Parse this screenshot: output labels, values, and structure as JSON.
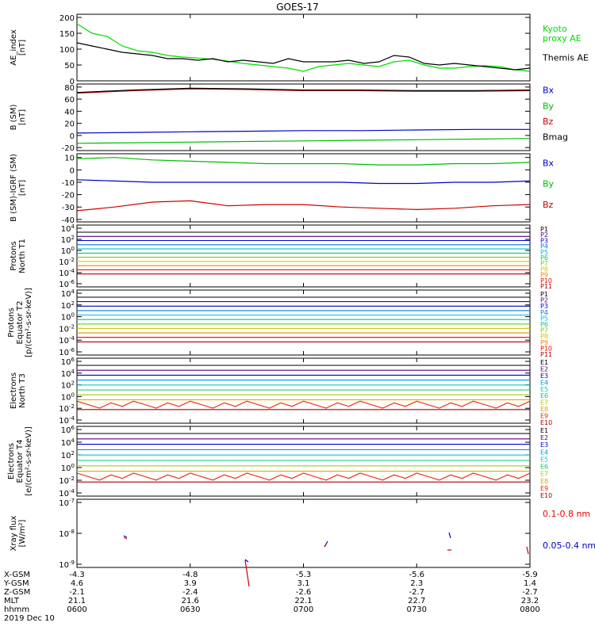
{
  "title": "GOES-17",
  "chart_data": [
    {
      "type": "line",
      "ylabel": "AE_index\n[nT]",
      "yticks": [
        "200",
        "150",
        "100",
        "50",
        "0"
      ],
      "ylim": [
        0,
        210
      ],
      "x": [
        600,
        604,
        608,
        612,
        616,
        620,
        624,
        628,
        632,
        636,
        640,
        644,
        648,
        652,
        656,
        700,
        704,
        708,
        712,
        716,
        720,
        724,
        728,
        732,
        736,
        740,
        744,
        748,
        752,
        756,
        800
      ],
      "series": [
        {
          "name": "Kyoto\nproxy AE",
          "color": "#00dd00",
          "values": [
            180,
            150,
            140,
            110,
            95,
            90,
            80,
            75,
            72,
            68,
            62,
            55,
            50,
            45,
            40,
            30,
            45,
            50,
            55,
            50,
            45,
            60,
            65,
            50,
            40,
            40,
            45,
            48,
            45,
            35,
            30
          ]
        },
        {
          "name": "Themis AE",
          "color": "#000000",
          "values": [
            120,
            110,
            100,
            90,
            85,
            80,
            70,
            70,
            65,
            70,
            60,
            65,
            60,
            55,
            70,
            60,
            60,
            60,
            65,
            55,
            60,
            80,
            75,
            55,
            50,
            55,
            50,
            45,
            40,
            35,
            40
          ]
        }
      ]
    },
    {
      "type": "line",
      "ylabel": "B (SM)\n[nT]",
      "yticks": [
        "80",
        "60",
        "40",
        "20",
        "0",
        "-20"
      ],
      "ylim": [
        -25,
        85
      ],
      "x": [
        600,
        615,
        630,
        645,
        700,
        715,
        730,
        745,
        800
      ],
      "series": [
        {
          "name": "Bx",
          "color": "#0000cc",
          "values": [
            4,
            5,
            6,
            7,
            8,
            8,
            9,
            10,
            10
          ]
        },
        {
          "name": "By",
          "color": "#00bb00",
          "values": [
            -13,
            -12,
            -11,
            -10,
            -9,
            -8,
            -7,
            -6,
            -5
          ]
        },
        {
          "name": "Bz",
          "color": "#cc0000",
          "values": [
            70,
            74,
            77,
            76,
            74,
            74,
            73,
            73,
            74
          ]
        },
        {
          "name": "Bmag",
          "color": "#000000",
          "values": [
            71,
            75,
            78,
            77,
            75,
            75,
            74,
            74,
            75
          ]
        }
      ]
    },
    {
      "type": "line",
      "ylabel": "B (SM)-IGRF (SM)\n[nT]",
      "yticks": [
        "10",
        "0",
        "-10",
        "-20",
        "-30",
        "-40"
      ],
      "ylim": [
        -42,
        13
      ],
      "x": [
        600,
        610,
        620,
        630,
        640,
        650,
        700,
        710,
        720,
        730,
        740,
        750,
        800
      ],
      "series": [
        {
          "name": "Bx",
          "color": "#0000cc",
          "values": [
            -8,
            -9,
            -10,
            -10,
            -10,
            -10,
            -10,
            -10,
            -11,
            -11,
            -10,
            -10,
            -9
          ]
        },
        {
          "name": "By",
          "color": "#00bb00",
          "values": [
            9,
            10,
            8,
            7,
            6,
            5,
            5,
            5,
            4,
            4,
            5,
            5,
            6
          ]
        },
        {
          "name": "Bz",
          "color": "#cc0000",
          "values": [
            -33,
            -30,
            -26,
            -25,
            -29,
            -28,
            -28,
            -30,
            -31,
            -32,
            -31,
            -29,
            -28
          ]
        }
      ]
    },
    {
      "type": "line",
      "ylabel": "Protons\nNorth T1",
      "yticks": [
        "10^4",
        "10^2",
        "10^0",
        "10^-2",
        "10^-4",
        "10^-6"
      ],
      "yscale": "log",
      "channels": [
        "P1",
        "P2",
        "P3",
        "P4",
        "P5",
        "P6",
        "P7",
        "P8",
        "P9",
        "P10",
        "P11"
      ],
      "channel_colors": [
        "#000000",
        "#550077",
        "#0000cc",
        "#0077dd",
        "#00bbdd",
        "#00cc77",
        "#77cc00",
        "#cccc00",
        "#ee8800",
        "#ee0000",
        "#aa0000"
      ]
    },
    {
      "type": "line",
      "ylabel": "Protons\nEquator T2\n[p/(cm²-s-sr-keV)]",
      "yticks": [
        "10^4",
        "10^2",
        "10^0",
        "10^-2",
        "10^-4",
        "10^-6"
      ],
      "yscale": "log",
      "channels": [
        "P1",
        "P2",
        "P3",
        "P4",
        "P5",
        "P6",
        "P7",
        "P8",
        "P9",
        "P10",
        "P11"
      ],
      "channel_colors": [
        "#000000",
        "#550077",
        "#0000cc",
        "#0077dd",
        "#00bbdd",
        "#00cc77",
        "#77cc00",
        "#cccc00",
        "#ee8800",
        "#ee0000",
        "#aa0000"
      ]
    },
    {
      "type": "line",
      "ylabel": "Electrons\nNorth T3",
      "yticks": [
        "10^6",
        "10^4",
        "10^2",
        "10^0",
        "10^-2",
        "10^-4"
      ],
      "yscale": "log",
      "channels": [
        "E1",
        "E2",
        "E3",
        "E4",
        "E5",
        "E6",
        "E7",
        "E8",
        "E9",
        "E10"
      ],
      "channel_colors": [
        "#000000",
        "#550077",
        "#0000cc",
        "#0099dd",
        "#00cccc",
        "#00cc66",
        "#aacc00",
        "#ddaa00",
        "#ee2200",
        "#aa0000"
      ]
    },
    {
      "type": "line",
      "ylabel": "Electrons\nEquator T4\n[e/(cm²-s-sr-keV)]",
      "yticks": [
        "10^6",
        "10^4",
        "10^2",
        "10^0",
        "10^-2",
        "10^-4"
      ],
      "yscale": "log",
      "channels": [
        "E1",
        "E2",
        "E3",
        "E4",
        "E5",
        "E6",
        "E7",
        "E8",
        "E9",
        "E10"
      ],
      "channel_colors": [
        "#000000",
        "#550077",
        "#0000cc",
        "#0099dd",
        "#00cccc",
        "#00cc66",
        "#aacc00",
        "#ddaa00",
        "#ee2200",
        "#aa0000"
      ]
    },
    {
      "type": "scatter",
      "ylabel": "Xray flux\n[W/m²]",
      "yticks": [
        "10^-7",
        "10^-8",
        "10^-9"
      ],
      "yscale": "log",
      "series": [
        {
          "name": "0.1-0.8 nm",
          "color": "#ee0000"
        },
        {
          "name": "0.05-0.4 nm",
          "color": "#0000cc"
        }
      ]
    }
  ],
  "xaxis": {
    "ticks": [
      600,
      630,
      700,
      730,
      800
    ],
    "rows": [
      {
        "label": "X-GSM",
        "values": [
          "-4.3",
          "-4.8",
          "-5.3",
          "-5.6",
          "-5.9"
        ]
      },
      {
        "label": "Y-GSM",
        "values": [
          "4.6",
          "3.9",
          "3.1",
          "2.3",
          "1.4"
        ]
      },
      {
        "label": "Z-GSM",
        "values": [
          "-2.1",
          "-2.4",
          "-2.6",
          "-2.7",
          "-2.7"
        ]
      },
      {
        "label": "MLT",
        "values": [
          "21.1",
          "21.6",
          "22.1",
          "22.7",
          "23.2"
        ]
      },
      {
        "label": "hhmm",
        "values": [
          "0600",
          "0630",
          "0700",
          "0730",
          "0800"
        ]
      }
    ],
    "date": "2019 Dec 10"
  }
}
